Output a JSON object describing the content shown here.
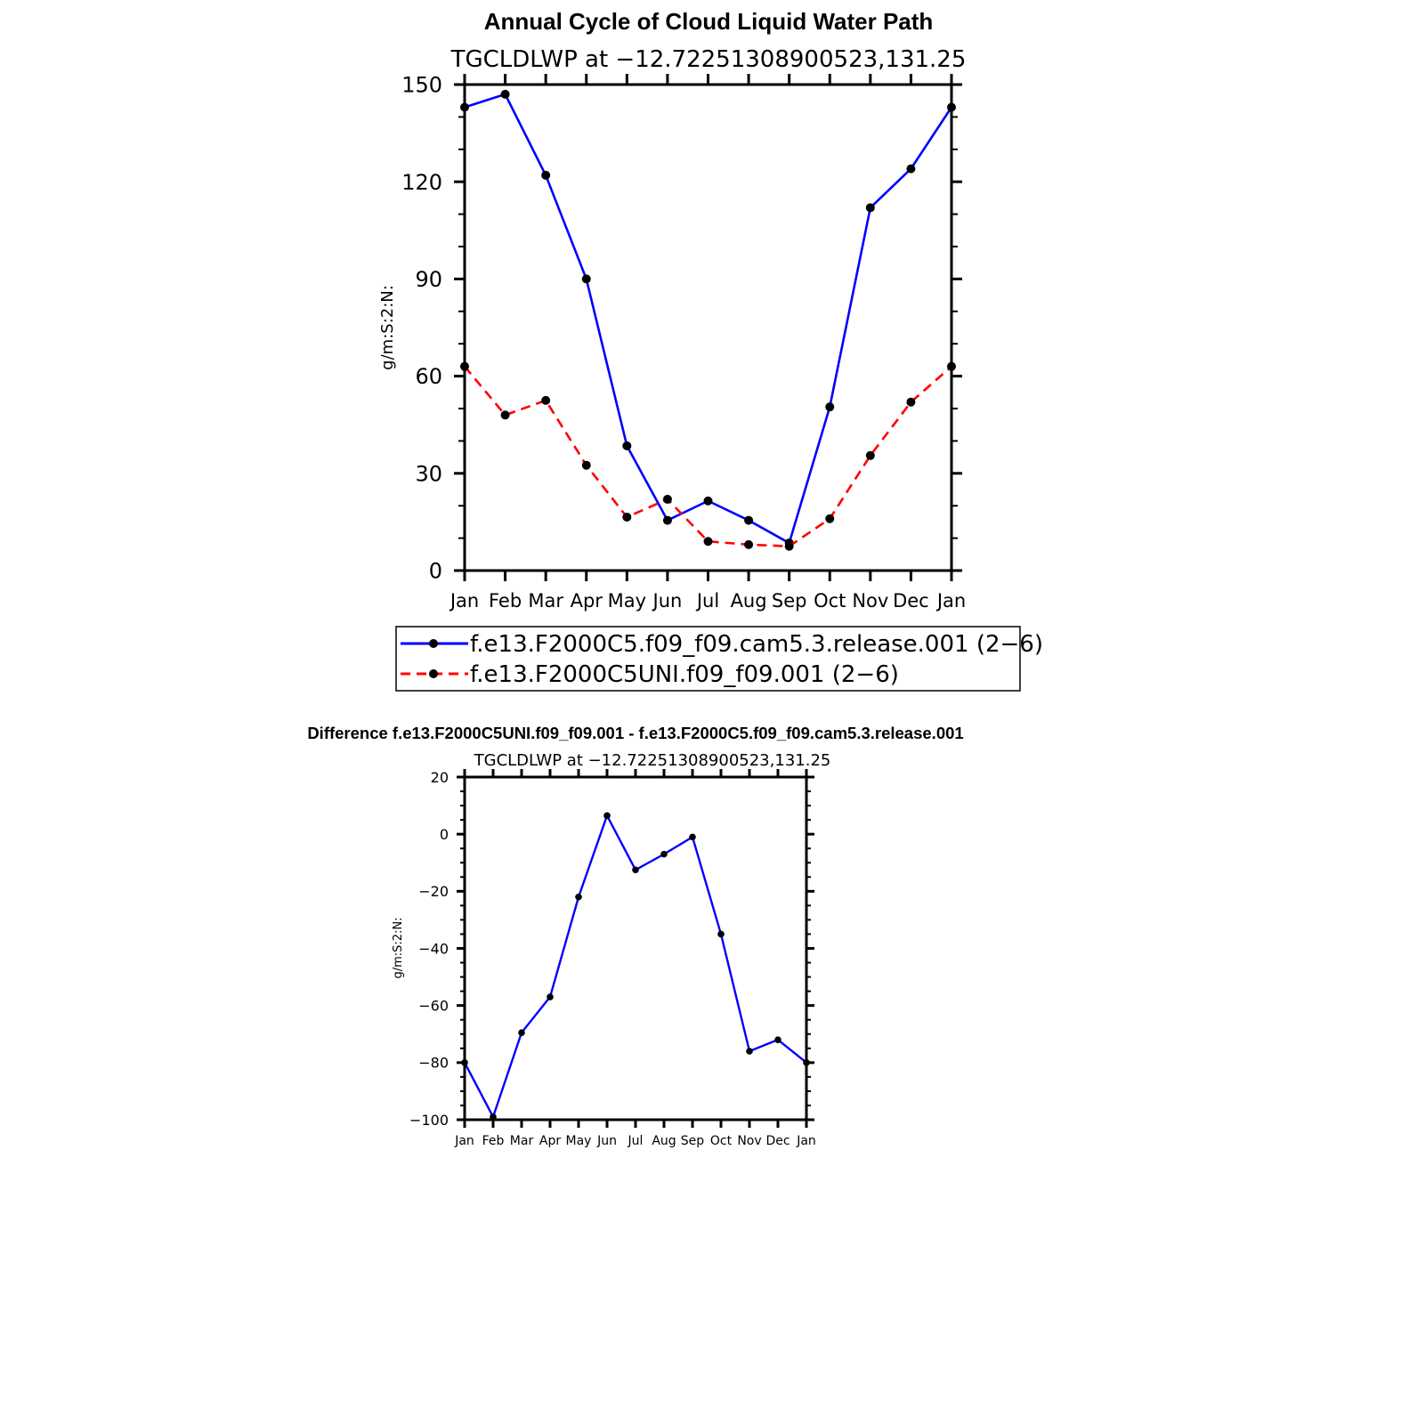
{
  "chart_data": [
    {
      "type": "line",
      "title": "Annual Cycle of Cloud Liquid Water Path",
      "subtitle": "TGCLDLWP at −12.72251308900523,131.25",
      "xlabel": "",
      "ylabel": "g/m:S:2:N:",
      "categories": [
        "Jan",
        "Feb",
        "Mar",
        "Apr",
        "May",
        "Jun",
        "Jul",
        "Aug",
        "Sep",
        "Oct",
        "Nov",
        "Dec",
        "Jan"
      ],
      "ylim": [
        0,
        150
      ],
      "yticks": [
        "0",
        "30",
        "60",
        "90",
        "120",
        "150"
      ],
      "legend": "bottom",
      "series": [
        {
          "name": "f.e13.F2000C5.f09_f09.cam5.3.release.001 (2−6)",
          "color": "#0000ff",
          "dashed": false,
          "values": [
            143,
            147,
            122,
            90,
            38.5,
            15.5,
            21.5,
            15.5,
            8.5,
            50.5,
            112,
            124,
            143
          ]
        },
        {
          "name": "f.e13.F2000C5UNI.f09_f09.001 (2−6)",
          "color": "#ff0000",
          "dashed": true,
          "values": [
            63,
            48,
            52.5,
            32.5,
            16.5,
            22,
            9,
            8,
            7.5,
            16,
            35.5,
            52,
            63
          ]
        }
      ]
    },
    {
      "type": "line",
      "title": "Difference f.e13.F2000C5UNI.f09_f09.001 - f.e13.F2000C5.f09_f09.cam5.3.release.001",
      "subtitle": "TGCLDLWP at −12.72251308900523,131.25",
      "xlabel": "",
      "ylabel": "g/m:S:2:N:",
      "categories": [
        "Jan",
        "Feb",
        "Mar",
        "Apr",
        "May",
        "Jun",
        "Jul",
        "Aug",
        "Sep",
        "Oct",
        "Nov",
        "Dec",
        "Jan"
      ],
      "ylim": [
        -100,
        20
      ],
      "yticks": [
        "−100",
        "−80",
        "−60",
        "−40",
        "−20",
        "0",
        "20"
      ],
      "series": [
        {
          "name": "difference",
          "color": "#0000ff",
          "dashed": false,
          "values": [
            -80,
            -99,
            -69.5,
            -57,
            -22,
            6.5,
            -12.5,
            -7,
            -1,
            -35,
            -76,
            -72,
            -80
          ]
        }
      ]
    }
  ]
}
